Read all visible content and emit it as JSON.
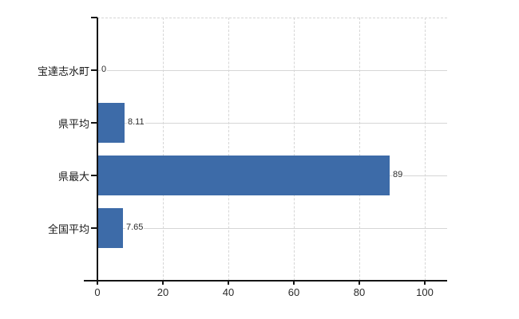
{
  "chart": {
    "background_color": "#ffffff",
    "bar_color": "#3d6ba8",
    "grid_color": "#d6d6d6",
    "axis_color": "#141414",
    "text_color": "#1a1a1a"
  },
  "chart_data": {
    "type": "bar",
    "orientation": "horizontal",
    "title": "",
    "categories": [
      "宝達志水町",
      "県平均",
      "県最大",
      "全国平均"
    ],
    "values": [
      0,
      8.11,
      89,
      7.65
    ],
    "value_labels": [
      "0",
      "8.11",
      "89",
      "7.65"
    ],
    "x_ticks": [
      0,
      20,
      40,
      60,
      80,
      100
    ],
    "x_tick_labels": [
      "0",
      "20",
      "40",
      "60",
      "80",
      "100"
    ],
    "xlim": [
      0,
      100
    ],
    "grid": "on",
    "legend": "none"
  }
}
